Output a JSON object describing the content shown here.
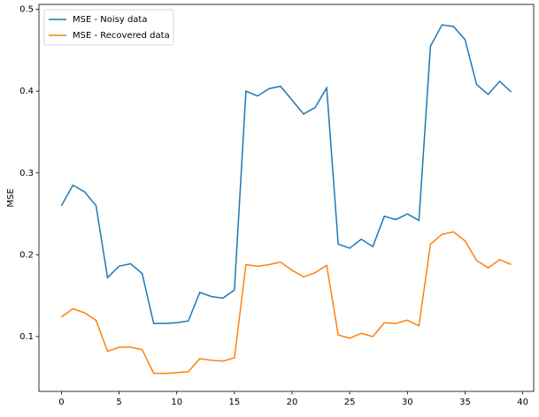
{
  "chart_data": {
    "type": "line",
    "y_label": "MSE",
    "x": [
      0,
      1,
      2,
      3,
      4,
      5,
      6,
      7,
      8,
      9,
      10,
      11,
      12,
      13,
      14,
      15,
      16,
      17,
      18,
      19,
      20,
      21,
      22,
      23,
      24,
      25,
      26,
      27,
      28,
      29,
      30,
      31,
      32,
      33,
      34,
      35,
      36,
      37,
      38,
      39
    ],
    "series": [
      {
        "name": "MSE - Noisy data",
        "color": "#1f77b4",
        "values": [
          0.26,
          0.285,
          0.277,
          0.26,
          0.172,
          0.186,
          0.189,
          0.177,
          0.116,
          0.116,
          0.117,
          0.119,
          0.154,
          0.149,
          0.147,
          0.157,
          0.4,
          0.394,
          0.403,
          0.406,
          0.389,
          0.372,
          0.38,
          0.404,
          0.213,
          0.208,
          0.219,
          0.21,
          0.247,
          0.243,
          0.25,
          0.242,
          0.455,
          0.481,
          0.479,
          0.463,
          0.408,
          0.396,
          0.412,
          0.399
        ]
      },
      {
        "name": "MSE - Recovered data",
        "color": "#ff7f0e",
        "values": [
          0.124,
          0.134,
          0.129,
          0.12,
          0.082,
          0.087,
          0.087,
          0.084,
          0.055,
          0.055,
          0.056,
          0.057,
          0.073,
          0.071,
          0.07,
          0.074,
          0.188,
          0.186,
          0.188,
          0.191,
          0.181,
          0.173,
          0.178,
          0.187,
          0.102,
          0.098,
          0.104,
          0.1,
          0.117,
          0.116,
          0.12,
          0.113,
          0.213,
          0.225,
          0.228,
          0.217,
          0.193,
          0.184,
          0.194,
          0.188
        ]
      }
    ],
    "xlim": [
      -1.95,
      40.95
    ],
    "ylim": [
      0.033,
      0.506
    ],
    "xticks": [
      0,
      5,
      10,
      15,
      20,
      25,
      30,
      35,
      40
    ],
    "yticks": [
      0.1,
      0.2,
      0.3,
      0.4,
      0.5
    ],
    "legend": "upper left"
  }
}
